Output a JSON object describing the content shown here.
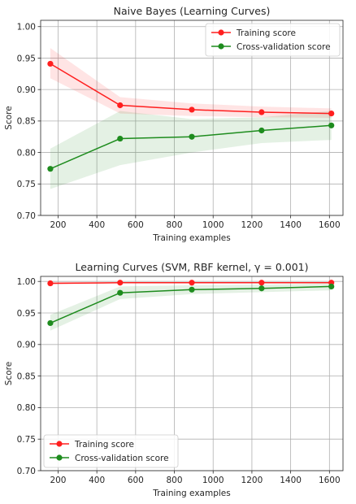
{
  "chart_data": [
    {
      "type": "line",
      "title": "Naive Bayes (Learning Curves)",
      "xlabel": "Training examples",
      "ylabel": "Score",
      "xlim": [
        110,
        1670
      ],
      "ylim": [
        0.7,
        1.01
      ],
      "xticks": [
        "200",
        "400",
        "600",
        "800",
        "1000",
        "1200",
        "1400",
        "1600"
      ],
      "yticks": [
        "0.70",
        "0.75",
        "0.80",
        "0.85",
        "0.90",
        "0.95",
        "1.00"
      ],
      "grid": true,
      "legend_position": "upper right",
      "x": [
        160,
        520,
        890,
        1250,
        1610
      ],
      "series": [
        {
          "name": "Training score",
          "color": "#ff1f1f",
          "values": [
            0.941,
            0.875,
            0.868,
            0.864,
            0.862
          ],
          "band_low": [
            0.918,
            0.862,
            0.858,
            0.856,
            0.855
          ],
          "band_high": [
            0.966,
            0.888,
            0.878,
            0.873,
            0.87
          ]
        },
        {
          "name": "Cross-validation score",
          "color": "#1e8c1e",
          "values": [
            0.774,
            0.822,
            0.825,
            0.835,
            0.843
          ],
          "band_low": [
            0.742,
            0.78,
            0.8,
            0.815,
            0.82
          ],
          "band_high": [
            0.806,
            0.866,
            0.853,
            0.856,
            0.866
          ]
        }
      ]
    },
    {
      "type": "line",
      "title": "Learning Curves (SVM, RBF kernel, γ = 0.001)",
      "xlabel": "Training examples",
      "ylabel": "Score",
      "xlim": [
        110,
        1670
      ],
      "ylim": [
        0.7,
        1.008
      ],
      "xticks": [
        "200",
        "400",
        "600",
        "800",
        "1000",
        "1200",
        "1400",
        "1600"
      ],
      "yticks": [
        "0.70",
        "0.75",
        "0.80",
        "0.85",
        "0.90",
        "0.95",
        "1.00"
      ],
      "grid": true,
      "legend_position": "lower left",
      "x": [
        160,
        520,
        890,
        1250,
        1610
      ],
      "series": [
        {
          "name": "Training score",
          "color": "#ff1f1f",
          "values": [
            0.997,
            0.998,
            0.998,
            0.998,
            0.998
          ],
          "band_low": [
            0.995,
            0.997,
            0.997,
            0.997,
            0.997
          ],
          "band_high": [
            0.999,
            0.999,
            0.999,
            0.999,
            0.999
          ]
        },
        {
          "name": "Cross-validation score",
          "color": "#1e8c1e",
          "values": [
            0.934,
            0.982,
            0.987,
            0.989,
            0.992
          ],
          "band_low": [
            0.922,
            0.972,
            0.98,
            0.983,
            0.986
          ],
          "band_high": [
            0.947,
            0.992,
            0.994,
            0.995,
            0.997
          ]
        }
      ]
    }
  ]
}
